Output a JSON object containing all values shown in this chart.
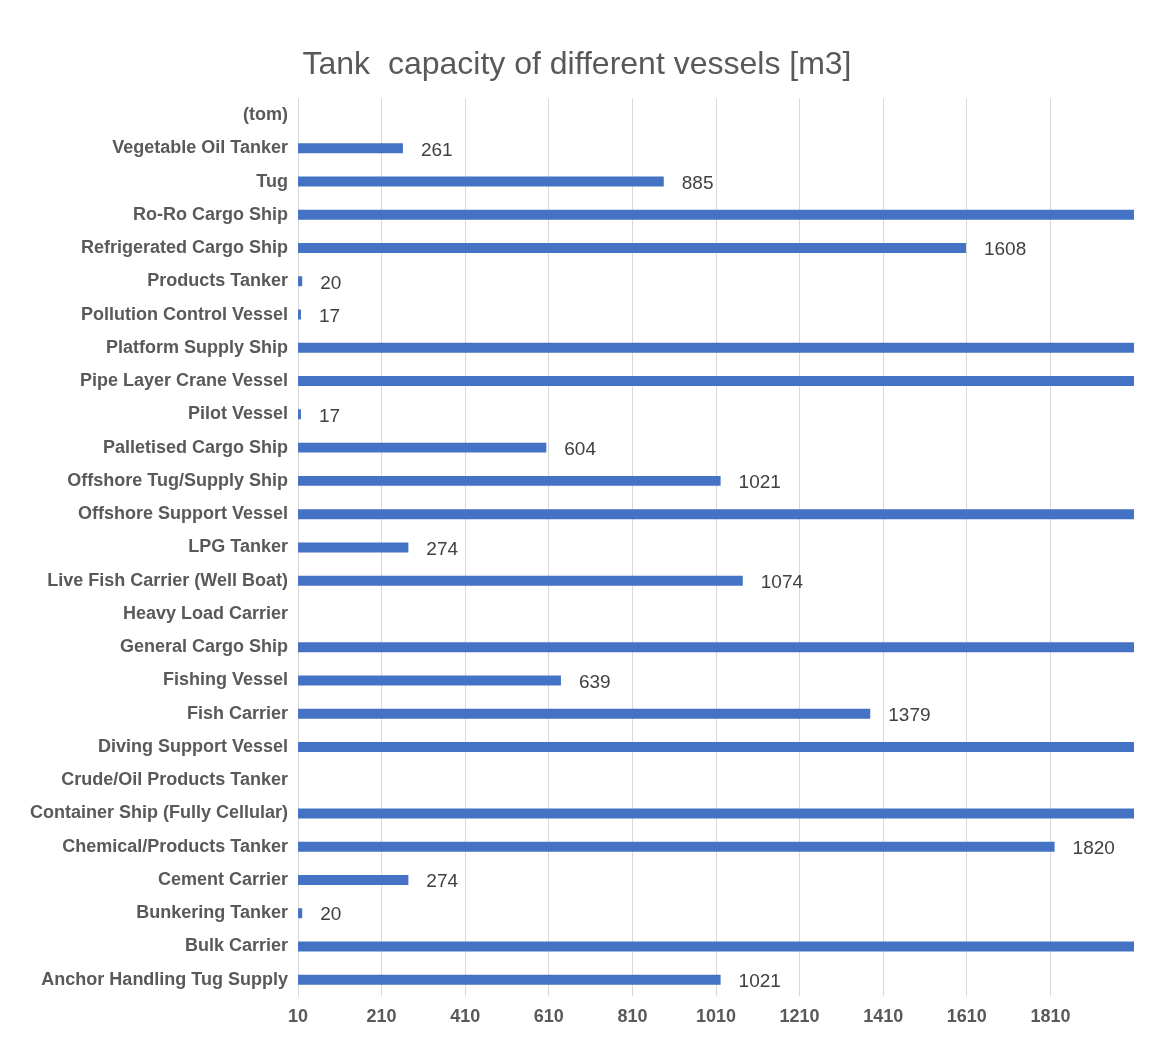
{
  "chart_data": {
    "type": "bar",
    "orientation": "horizontal",
    "title": "Tank  capacity of different vessels [m3]",
    "categories": [
      "(tom)",
      "Vegetable Oil Tanker",
      "Tug",
      "Ro-Ro Cargo Ship",
      "Refrigerated Cargo Ship",
      "Products Tanker",
      "Pollution Control Vessel",
      "Platform Supply Ship",
      "Pipe Layer Crane Vessel",
      "Pilot Vessel",
      "Palletised Cargo Ship",
      "Offshore Tug/Supply Ship",
      "Offshore Support Vessel",
      "LPG Tanker",
      "Live Fish Carrier (Well Boat)",
      "Heavy Load Carrier",
      "General Cargo Ship",
      "Fishing Vessel",
      "Fish Carrier",
      "Diving Support Vessel",
      "Crude/Oil Products Tanker",
      "Container Ship (Fully Cellular)",
      "Chemical/Products Tanker",
      "Cement Carrier",
      "Bunkering Tanker",
      "Bulk Carrier",
      "Anchor Handling Tug Supply"
    ],
    "values": [
      null,
      261,
      885,
      2010,
      1608,
      20,
      17,
      2010,
      2010,
      17,
      604,
      1021,
      2010,
      274,
      1074,
      null,
      2010,
      639,
      1379,
      2010,
      null,
      2010,
      1820,
      274,
      20,
      2010,
      1021
    ],
    "value_labels": [
      null,
      "261",
      "885",
      null,
      "1608",
      "20",
      "17",
      null,
      null,
      "17",
      "604",
      "1021",
      null,
      "274",
      "1074",
      null,
      null,
      "639",
      "1379",
      null,
      null,
      null,
      "1820",
      "274",
      "20",
      null,
      "1021"
    ],
    "color": "#4472c4",
    "xlim": [
      10,
      2010
    ],
    "xticks": [
      10,
      210,
      410,
      610,
      810,
      1010,
      1210,
      1410,
      1610,
      1810
    ],
    "grid": "x",
    "legend": false
  }
}
